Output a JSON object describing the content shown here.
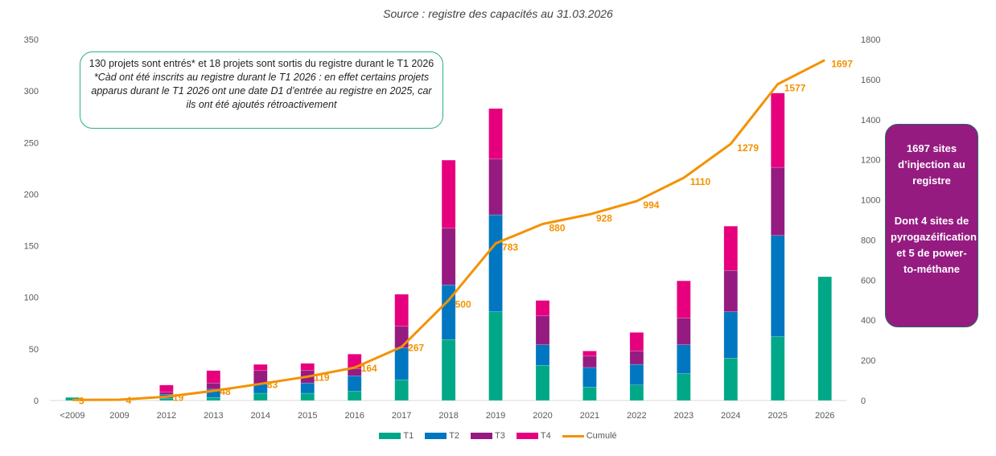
{
  "chart_data": {
    "type": "bar",
    "subtype": "stacked bar with cumulative line on secondary axis",
    "title": "Source : registre des capacités au 31.03.2026",
    "categories": [
      "<2009",
      "2009",
      "2012",
      "2013",
      "2014",
      "2015",
      "2016",
      "2017",
      "2018",
      "2019",
      "2020",
      "2021",
      "2022",
      "2023",
      "2024",
      "2025",
      "2026"
    ],
    "series": [
      {
        "name": "T1",
        "color": "#00A887",
        "values": [
          3,
          1,
          2,
          3,
          7,
          7,
          9,
          20,
          59,
          86,
          34,
          13,
          15,
          26,
          41,
          62,
          120
        ]
      },
      {
        "name": "T2",
        "color": "#0077C0",
        "values": [
          0,
          0,
          4,
          8,
          9,
          10,
          15,
          31,
          53,
          94,
          20,
          19,
          20,
          28,
          45,
          98,
          0
        ]
      },
      {
        "name": "T3",
        "color": "#951B81",
        "values": [
          0,
          0,
          2,
          6,
          13,
          12,
          7,
          21,
          55,
          54,
          28,
          11,
          13,
          26,
          40,
          66,
          0
        ]
      },
      {
        "name": "T4",
        "color": "#E6007E",
        "values": [
          0,
          0,
          7,
          12,
          6,
          7,
          14,
          31,
          66,
          49,
          15,
          5,
          18,
          36,
          43,
          72,
          0
        ]
      }
    ],
    "line": {
      "name": "Cumulé",
      "color": "#F39200",
      "axis": "right",
      "values": [
        3,
        4,
        19,
        48,
        83,
        119,
        164,
        267,
        500,
        783,
        880,
        928,
        994,
        1110,
        1279,
        1577,
        1697
      ]
    },
    "ylim": [
      0,
      350
    ],
    "y_ticks": [
      "0",
      "50",
      "100",
      "150",
      "200",
      "250",
      "300",
      "350"
    ],
    "y2lim": [
      0,
      1800
    ],
    "y2_ticks": [
      "0",
      "200",
      "400",
      "600",
      "800",
      "1000",
      "1200",
      "1400",
      "1600",
      "1800"
    ],
    "xlabel": "",
    "ylabel": "",
    "y2label": "",
    "grid": false,
    "legend": "bottom"
  },
  "note": {
    "line1": "130 projets sont entrés* et 18 projets sont sortis du registre durant le T1 2026",
    "line2": "*Càd ont été inscrits au registre durant le T1 2026 : en effet certains projets apparus durant le T1 2026 ont une date D1 d’entrée au registre en 2025, car ils ont été ajoutés rétroactivement"
  },
  "side_box": {
    "line1": "1697 sites d’injection au registre",
    "line2": "Dont 4 sites de pyrogazéification et 5 de power-to-méthane"
  }
}
